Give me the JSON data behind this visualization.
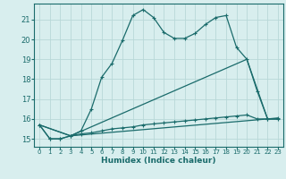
{
  "xlabel": "Humidex (Indice chaleur)",
  "bg_color": "#d8eeee",
  "grid_color": "#b8d8d8",
  "line_color": "#1a6b6b",
  "xlim": [
    -0.5,
    23.5
  ],
  "ylim": [
    14.6,
    21.8
  ],
  "xticks": [
    0,
    1,
    2,
    3,
    4,
    5,
    6,
    7,
    8,
    9,
    10,
    11,
    12,
    13,
    14,
    15,
    16,
    17,
    18,
    19,
    20,
    21,
    22,
    23
  ],
  "yticks": [
    15,
    16,
    17,
    18,
    19,
    20,
    21
  ],
  "series1_x": [
    0,
    1,
    2,
    3,
    4,
    5,
    6,
    7,
    8,
    9,
    10,
    11,
    12,
    13,
    14,
    15,
    16,
    17,
    18,
    19,
    20,
    21,
    22,
    23
  ],
  "series1_y": [
    15.7,
    15.0,
    15.0,
    15.15,
    15.25,
    15.3,
    15.4,
    15.5,
    15.55,
    15.6,
    15.7,
    15.75,
    15.8,
    15.85,
    15.9,
    15.95,
    16.0,
    16.05,
    16.1,
    16.15,
    16.2,
    16.0,
    16.0,
    16.0
  ],
  "series2_x": [
    0,
    1,
    2,
    3,
    4,
    5,
    6,
    7,
    8,
    9,
    10,
    11,
    12,
    13,
    14,
    15,
    16,
    17,
    18,
    19,
    20,
    21,
    22,
    23
  ],
  "series2_y": [
    15.7,
    15.0,
    15.0,
    15.15,
    15.4,
    16.5,
    18.1,
    18.8,
    19.95,
    21.2,
    21.5,
    21.1,
    20.35,
    20.05,
    20.05,
    20.3,
    20.75,
    21.1,
    21.2,
    19.6,
    19.0,
    17.4,
    16.0,
    16.05
  ],
  "series3_x": [
    0,
    3,
    20,
    22,
    23
  ],
  "series3_y": [
    15.7,
    15.15,
    19.0,
    16.0,
    16.0
  ],
  "series4_x": [
    0,
    3,
    22,
    23
  ],
  "series4_y": [
    15.7,
    15.15,
    16.0,
    16.0
  ]
}
